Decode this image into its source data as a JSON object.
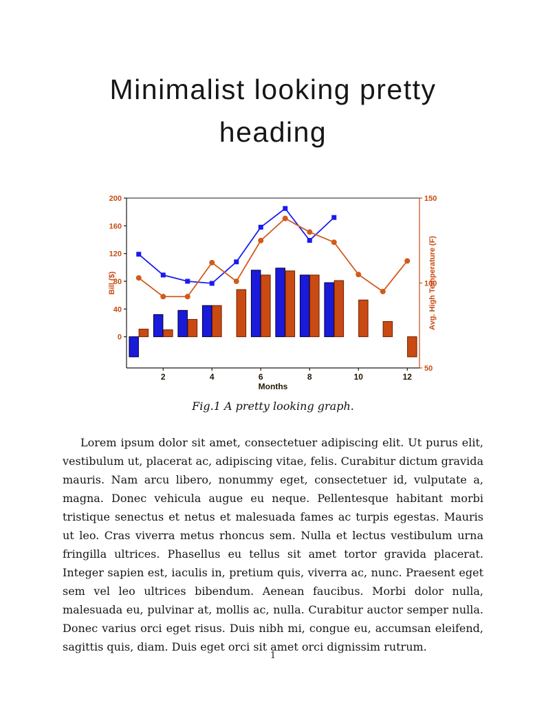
{
  "heading": {
    "line1": "Minimalist looking pretty",
    "line2": "heading"
  },
  "figure": {
    "caption": "Fig.1 A pretty looking graph."
  },
  "body": {
    "paragraph": "Lorem ipsum dolor sit amet, consectetuer adipiscing elit. Ut purus elit, vestibulum ut, placerat ac, adipiscing vitae, felis. Curabitur dictum gravida mauris. Nam arcu libero, nonummy eget, consectetuer id, vulputate a, magna. Donec vehicula augue eu neque. Pellentesque habitant morbi tristique senectus et netus et malesuada fames ac turpis egestas. Mauris ut leo. Cras viverra metus rhoncus sem. Nulla et lectus vestibulum urna fringilla ultrices. Phasellus eu tellus sit amet tortor gravida placerat. Integer sapien est, iaculis in, pretium quis, viverra ac, nunc. Praesent eget sem vel leo ultrices bibendum. Aenean faucibus. Morbi dolor nulla, malesuada eu, pulvinar at, mollis ac, nulla. Curabitur auctor semper nulla. Donec varius orci eget risus. Duis nibh mi, congue eu, accumsan eleifend, sagittis quis, diam. Duis eget orci sit amet orci dignissim rutrum."
  },
  "page": {
    "number": "1"
  },
  "chart_data": {
    "type": "bar",
    "subtype": "grouped-bars-with-two-lines-dual-axis",
    "x": [
      1,
      2,
      3,
      4,
      5,
      6,
      7,
      8,
      9,
      10,
      11,
      12
    ],
    "x_ticks": [
      2,
      4,
      6,
      8,
      10,
      12
    ],
    "xlim": [
      0.5,
      12.5
    ],
    "xlabel": "Months",
    "grid": false,
    "legend": null,
    "left_axis": {
      "label": "Bill ($)",
      "ticks": [
        0,
        40,
        80,
        120,
        160,
        200
      ],
      "lim": [
        -45,
        200
      ],
      "color": "#C84A0F"
    },
    "right_axis": {
      "label": "Avg. High Temperature (F)",
      "ticks": [
        50,
        100,
        150
      ],
      "lim": [
        50,
        150
      ],
      "color": "#C84A0F"
    },
    "series": [
      {
        "name": "bill-bars-blue",
        "type": "bar",
        "axis": "left",
        "color": "#1A1ADB",
        "edge": "#00002E",
        "values": [
          -29,
          32,
          38,
          45,
          null,
          96,
          99,
          89,
          78,
          null,
          null,
          null
        ]
      },
      {
        "name": "bill-bars-orange",
        "type": "bar",
        "axis": "left",
        "color": "#C94A12",
        "edge": "#6E1E00",
        "values": [
          11,
          10,
          25,
          45,
          68,
          89,
          95,
          89,
          81,
          53,
          22,
          -29
        ]
      },
      {
        "name": "bill-line-blue",
        "type": "line",
        "axis": "left",
        "color": "#1A1AF0",
        "marker": "square",
        "values": [
          119,
          89,
          80,
          77,
          108,
          158,
          185,
          139,
          172,
          null,
          null,
          null
        ]
      },
      {
        "name": "temp-line-orange",
        "type": "line",
        "axis": "right",
        "color": "#D25A1B",
        "marker": "circle",
        "values": [
          103,
          92,
          92,
          112,
          101,
          125,
          138,
          130,
          124,
          105,
          95,
          113
        ]
      }
    ],
    "spine_color": "#1A1A1A",
    "x_text_color": "#241505"
  }
}
